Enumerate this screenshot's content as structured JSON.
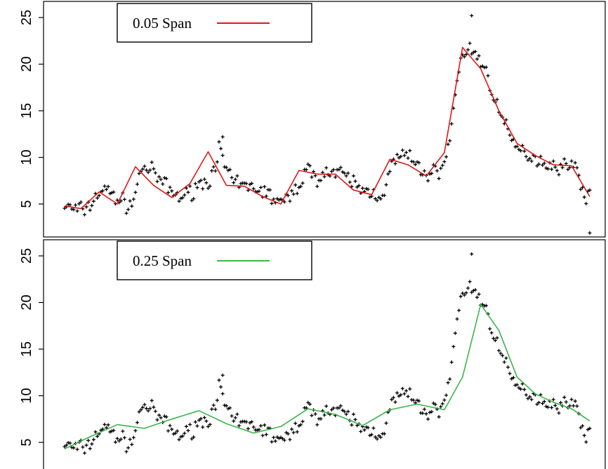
{
  "chart_data": [
    {
      "type": "scatter",
      "legend": {
        "label": "0.05 Span",
        "color": "#e01818",
        "placement": "top-left"
      },
      "ylim": [
        1.5,
        26
      ],
      "yticks": [
        "5",
        "10",
        "15",
        "20",
        "25"
      ],
      "x_range": [
        1,
        350
      ],
      "points": "scatter data with local regression smooth",
      "series": [
        {
          "name": "0.05 Span",
          "style": "line",
          "color": "#e01818",
          "x": [
            1,
            10,
            20,
            30,
            40,
            50,
            60,
            70,
            80,
            90,
            100,
            110,
            120,
            130,
            140,
            150,
            160,
            170,
            180,
            190,
            200,
            210,
            220,
            230,
            240,
            250,
            260,
            270,
            280,
            290,
            300,
            310,
            320,
            330,
            340,
            350
          ],
          "y": [
            4.8,
            4.5,
            6.3,
            5.0,
            9.0,
            7.0,
            5.7,
            7.2,
            10.6,
            7.0,
            6.9,
            5.8,
            5.0,
            8.6,
            8.2,
            8.2,
            6.5,
            6.0,
            9.8,
            9.2,
            8.0,
            10.5,
            21.8,
            19.5,
            15.0,
            11.5,
            10.2,
            9.2,
            9.1,
            5.8,
            5.8,
            5.8,
            5.8,
            5.8,
            5.8,
            5.8
          ]
        }
      ]
    },
    {
      "type": "scatter",
      "legend": {
        "label": "0.25 Span",
        "color": "#3cb44b",
        "placement": "top-left"
      },
      "ylim": [
        1.5,
        26
      ],
      "yticks": [
        "5",
        "10",
        "15",
        "20",
        "25"
      ],
      "x_range": [
        1,
        350
      ],
      "series": [
        {
          "name": "0.25 Span",
          "style": "line",
          "color": "#3cb44b",
          "x": [
            1,
            15,
            30,
            45,
            60,
            75,
            90,
            105,
            120,
            135,
            150,
            165,
            180,
            195,
            210,
            220,
            230,
            240,
            250,
            260,
            270,
            280,
            290
          ],
          "y": [
            4.3,
            5.6,
            6.9,
            6.5,
            7.5,
            8.4,
            7.0,
            6.0,
            6.7,
            8.6,
            8.0,
            6.8,
            8.5,
            9.1,
            8.5,
            12.0,
            19.8,
            17.0,
            12.0,
            10.2,
            9.3,
            8.6,
            7.3
          ]
        }
      ]
    }
  ]
}
